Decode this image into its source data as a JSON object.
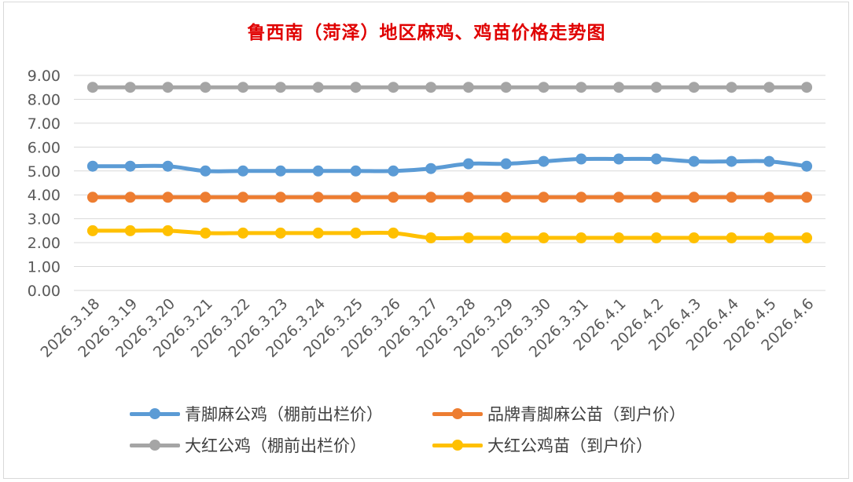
{
  "chart_data": {
    "type": "line",
    "title": "鲁西南（菏泽）地区麻鸡、鸡苗价格走势图",
    "xlabel": "",
    "ylabel": "",
    "categories": [
      "2026.3.18",
      "2026.3.19",
      "2026.3.20",
      "2026.3.21",
      "2026.3.22",
      "2026.3.23",
      "2026.3.24",
      "2026.3.25",
      "2026.3.26",
      "2026.3.27",
      "2026.3.28",
      "2026.3.29",
      "2026.3.30",
      "2026.3.31",
      "2026.4.1",
      "2026.4.2",
      "2026.4.3",
      "2026.4.4",
      "2026.4.5",
      "2026.4.6"
    ],
    "ylim": [
      0,
      9
    ],
    "yticks": [
      "0.00",
      "1.00",
      "2.00",
      "3.00",
      "4.00",
      "5.00",
      "6.00",
      "7.00",
      "8.00",
      "9.00"
    ],
    "grid": true,
    "legend_position": "bottom",
    "series": [
      {
        "name": "青脚麻公鸡（棚前出栏价）",
        "color": "#5b9bd5",
        "values": [
          5.2,
          5.2,
          5.2,
          5.0,
          5.0,
          5.0,
          5.0,
          5.0,
          5.0,
          5.1,
          5.3,
          5.3,
          5.4,
          5.5,
          5.5,
          5.5,
          5.4,
          5.4,
          5.4,
          5.2
        ]
      },
      {
        "name": "品牌青脚麻公苗（到户价）",
        "color": "#ed7d31",
        "values": [
          3.9,
          3.9,
          3.9,
          3.9,
          3.9,
          3.9,
          3.9,
          3.9,
          3.9,
          3.9,
          3.9,
          3.9,
          3.9,
          3.9,
          3.9,
          3.9,
          3.9,
          3.9,
          3.9,
          3.9
        ]
      },
      {
        "name": "大红公鸡（棚前出栏价）",
        "color": "#a5a5a5",
        "values": [
          8.5,
          8.5,
          8.5,
          8.5,
          8.5,
          8.5,
          8.5,
          8.5,
          8.5,
          8.5,
          8.5,
          8.5,
          8.5,
          8.5,
          8.5,
          8.5,
          8.5,
          8.5,
          8.5,
          8.5
        ]
      },
      {
        "name": "大红公鸡苗（到户价）",
        "color": "#ffc000",
        "values": [
          2.5,
          2.5,
          2.5,
          2.4,
          2.4,
          2.4,
          2.4,
          2.4,
          2.4,
          2.2,
          2.2,
          2.2,
          2.2,
          2.2,
          2.2,
          2.2,
          2.2,
          2.2,
          2.2,
          2.2
        ]
      }
    ]
  }
}
